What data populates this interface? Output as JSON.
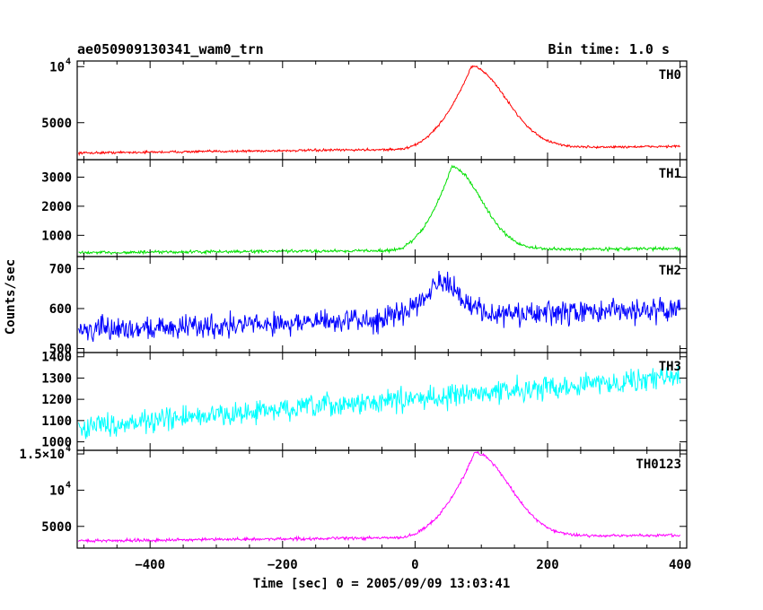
{
  "chart_data": {
    "type": "line",
    "title": "ae050909130341_wam0_trn",
    "bin_time": "Bin time: 1.0 s",
    "xlabel": "Time [sec] 0 = 2005/09/09 13:03:41",
    "ylabel": "Counts/sec",
    "xlim": [
      -510,
      410
    ],
    "x_ticks": [
      -400,
      -200,
      0,
      200,
      400
    ],
    "x_tick_labels": [
      "−400",
      "−200",
      "0",
      "200",
      "400"
    ],
    "panels": [
      {
        "name": "TH0",
        "color": "#ff0000",
        "ylim": [
          1700,
          10500
        ],
        "yticks": [
          {
            "value": 10000,
            "label": "10",
            "exp": "4"
          },
          {
            "value": 5000,
            "label": "5000"
          }
        ],
        "baseline_start": 2300,
        "baseline_end": 2900,
        "peak": 10000,
        "peak_time": 85,
        "rise_start": -30,
        "decay_scale": 70,
        "noise": 90,
        "features": [
          [
            30,
            6200
          ],
          [
            50,
            8800
          ],
          [
            85,
            10000
          ]
        ]
      },
      {
        "name": "TH1",
        "color": "#00e000",
        "ylim": [
          270,
          3600
        ],
        "yticks": [
          {
            "value": 3000,
            "label": "3000"
          },
          {
            "value": 2000,
            "label": "2000"
          },
          {
            "value": 1000,
            "label": "1000"
          }
        ],
        "baseline_start": 400,
        "baseline_end": 550,
        "peak": 3350,
        "peak_time": 55,
        "rise_start": -40,
        "decay_scale": 60,
        "noise": 45,
        "features": [
          [
            45,
            3500
          ],
          [
            60,
            3450
          ],
          [
            85,
            3300
          ]
        ]
      },
      {
        "name": "TH2",
        "color": "#0000ff",
        "ylim": [
          490,
          730
        ],
        "yticks": [
          {
            "value": 700,
            "label": "700"
          },
          {
            "value": 600,
            "label": "600"
          },
          {
            "value": 500,
            "label": "500"
          }
        ],
        "baseline_start": 545,
        "baseline_end": 600,
        "peak": 665,
        "peak_time": 30,
        "rise_start": -60,
        "decay_scale": 50,
        "noise": 25,
        "features": []
      },
      {
        "name": "TH3",
        "color": "#00ffff",
        "ylim": [
          960,
          1420
        ],
        "yticks": [
          {
            "value": 1400,
            "label": "1400"
          },
          {
            "value": 1300,
            "label": "1300"
          },
          {
            "value": 1200,
            "label": "1200"
          },
          {
            "value": 1100,
            "label": "1100"
          },
          {
            "value": 1000,
            "label": "1000"
          }
        ],
        "baseline_start": 1070,
        "baseline_end": 1310,
        "peak": 1310,
        "peak_time": 60,
        "rise_start": 400,
        "decay_scale": 100,
        "noise": 45,
        "features": []
      },
      {
        "name": "TH0123",
        "color": "#ff00ff",
        "ylim": [
          2000,
          15500
        ],
        "yticks": [
          {
            "value": 15000,
            "label": "1.5×10",
            "exp": "4"
          },
          {
            "value": 10000,
            "label": "10",
            "exp": "4"
          },
          {
            "value": 5000,
            "label": "5000"
          }
        ],
        "baseline_start": 3000,
        "baseline_end": 3800,
        "peak": 15200,
        "peak_time": 90,
        "rise_start": -30,
        "decay_scale": 70,
        "noise": 180,
        "features": [
          [
            50,
            14000
          ],
          [
            90,
            15200
          ]
        ]
      }
    ],
    "grid": false,
    "legend": "none"
  }
}
